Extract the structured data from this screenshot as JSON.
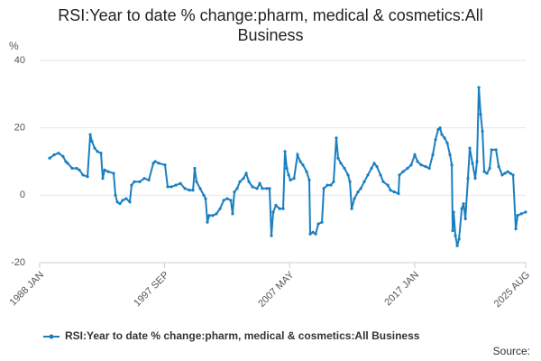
{
  "chart_data": {
    "type": "line",
    "title": "RSI:Year to date % change:pharm, medical & cosmetics:All Business",
    "y_label": "%",
    "source": "Source:",
    "series": [
      {
        "name": "RSI:Year to date % change:pharm, medical & cosmetics:All Business",
        "color": "#1a7fc1",
        "x": [
          1988.77,
          1989.12,
          1989.46,
          1989.81,
          1990.02,
          1990.16,
          1990.51,
          1990.86,
          1991.07,
          1991.35,
          1991.7,
          1991.91,
          1992.04,
          1992.25,
          1992.46,
          1992.74,
          1992.88,
          1993.02,
          1993.3,
          1993.72,
          1993.86,
          1994.0,
          1994.21,
          1994.42,
          1994.69,
          1994.97,
          1995.11,
          1995.32,
          1995.74,
          1996.09,
          1996.44,
          1996.79,
          1996.93,
          1997.21,
          1997.69,
          1997.9,
          1998.18,
          1998.53,
          1998.88,
          1999.23,
          1999.58,
          1999.86,
          1999.99,
          2000.13,
          2000.41,
          2000.69,
          2000.83,
          2000.97,
          2001.11,
          2001.39,
          2001.67,
          2001.95,
          2002.23,
          2002.5,
          2002.78,
          2002.92,
          2003.06,
          2003.27,
          2003.48,
          2003.76,
          2003.97,
          2004.18,
          2004.46,
          2004.81,
          2005.02,
          2005.22,
          2005.57,
          2005.78,
          2005.92,
          2006.06,
          2006.27,
          2006.55,
          2006.83,
          2006.97,
          2007.11,
          2007.25,
          2007.39,
          2007.67,
          2007.94,
          2008.15,
          2008.36,
          2008.64,
          2008.85,
          2008.92,
          2009.13,
          2009.34,
          2009.55,
          2009.83,
          2009.97,
          2010.25,
          2010.52,
          2010.73,
          2010.94,
          2011.08,
          2011.29,
          2011.57,
          2011.85,
          2011.99,
          2012.13,
          2012.34,
          2012.62,
          2012.83,
          2013.1,
          2013.38,
          2013.66,
          2013.87,
          2014.08,
          2014.36,
          2014.57,
          2014.92,
          2015.13,
          2015.41,
          2015.75,
          2015.82,
          2016.1,
          2016.45,
          2016.73,
          2017.01,
          2017.22,
          2017.5,
          2017.85,
          2018.13,
          2018.4,
          2018.61,
          2018.82,
          2018.96,
          2019.1,
          2019.31,
          2019.52,
          2019.73,
          2019.87,
          2019.94,
          2020.01,
          2020.15,
          2020.29,
          2020.43,
          2020.64,
          2020.78,
          2020.92,
          2021.12,
          2021.26,
          2021.47,
          2021.68,
          2021.82,
          2021.96,
          2022.1,
          2022.24,
          2022.38,
          2022.59,
          2022.8,
          2022.94,
          2023.29,
          2023.5,
          2023.77,
          2023.98,
          2024.19,
          2024.4,
          2024.61,
          2024.82,
          2024.96,
          2025.24,
          2025.58
        ],
        "values": [
          11,
          12,
          12.5,
          11.5,
          10,
          9.5,
          8,
          8,
          7.5,
          6,
          5.5,
          18,
          16,
          14,
          13,
          12.5,
          5,
          7.5,
          7,
          6.5,
          0,
          -2,
          -2.5,
          -1.5,
          -1,
          -2,
          3,
          4,
          4,
          5,
          4.5,
          9.5,
          10,
          9.5,
          9,
          2.5,
          2.5,
          3,
          3.5,
          2,
          1.5,
          1.5,
          8,
          4,
          2,
          0,
          -1,
          -8,
          -6,
          -6,
          -5.5,
          -4,
          -1.5,
          -1,
          -1.5,
          -5.5,
          1,
          2,
          4,
          5,
          6.5,
          4,
          2.5,
          2,
          3.5,
          2,
          2,
          2,
          -12,
          -5,
          -3,
          -4,
          -4,
          13,
          8,
          6,
          4.5,
          5,
          12,
          10,
          9,
          7,
          4.5,
          -11.5,
          -11,
          -11.5,
          -8.5,
          -8,
          2,
          3,
          3,
          4,
          17,
          11,
          9.5,
          8,
          6,
          4,
          -4,
          -1,
          1,
          2,
          4,
          6,
          8,
          9.5,
          8.5,
          6,
          4,
          3,
          1.5,
          1,
          0.5,
          6,
          7,
          8,
          9,
          12,
          10,
          9,
          8.5,
          8,
          12,
          16.5,
          19.5,
          20,
          18,
          17,
          15.5,
          12,
          9,
          -10.5,
          -5,
          -12,
          -15,
          -13,
          -4,
          -2.5,
          -7,
          5,
          14,
          9.5,
          5,
          10,
          32,
          24,
          19,
          7,
          6.5,
          8,
          13.5,
          13.5,
          8.5,
          6,
          6.5,
          7,
          6.5,
          6,
          -10,
          -6,
          -5.5,
          -5
        ]
      }
    ],
    "xlim": [
      1988.0,
      2025.583
    ],
    "xticks": [
      {
        "value": 1988.0,
        "label": "1988 JAN"
      },
      {
        "value": 1997.667,
        "label": "1997 SEP"
      },
      {
        "value": 2007.333,
        "label": "2007 MAY"
      },
      {
        "value": 2017.0,
        "label": "2017 JAN"
      },
      {
        "value": 2025.583,
        "label": "2025 AUG"
      }
    ],
    "ylim": [
      -20,
      40
    ],
    "yticks": [
      -20,
      0,
      20,
      40
    ],
    "grid": true
  }
}
